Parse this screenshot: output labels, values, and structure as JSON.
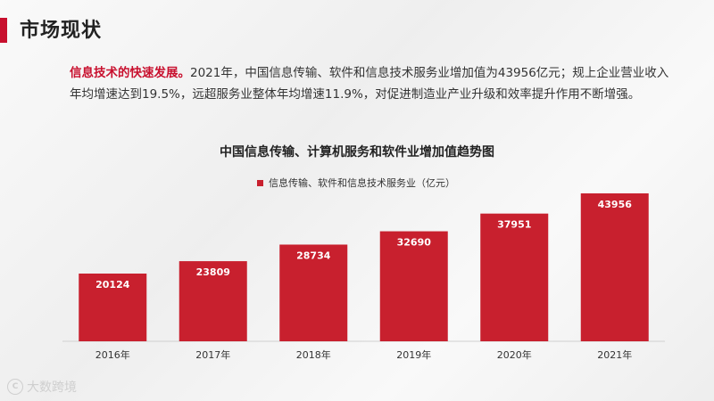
{
  "page": {
    "title": "市场现状"
  },
  "intro": {
    "lead": "信息技术的快速发展。",
    "body": "2021年，中国信息传输、软件和信息技术服务业增加值为43956亿元；规上企业营业收入年均增速达到19.5%，远超服务业整体年均增速11.9%，对促进制造业产业升级和效率提升作用不断增强。"
  },
  "watermark": {
    "text": "大数跨境"
  },
  "chart_data": {
    "type": "bar",
    "title": "中国信息传输、计算机服务和软件业增加值趋势图",
    "legend": "信息传输、软件和信息技术服务业（亿元）",
    "categories": [
      "2016年",
      "2017年",
      "2018年",
      "2019年",
      "2020年",
      "2021年"
    ],
    "values": [
      20124,
      23809,
      28734,
      32690,
      37951,
      43956
    ],
    "ylim": [
      0,
      50000
    ],
    "grid": false,
    "legend_position": "top",
    "bar_color": "#c8202e",
    "label_color": "#ffffff"
  }
}
